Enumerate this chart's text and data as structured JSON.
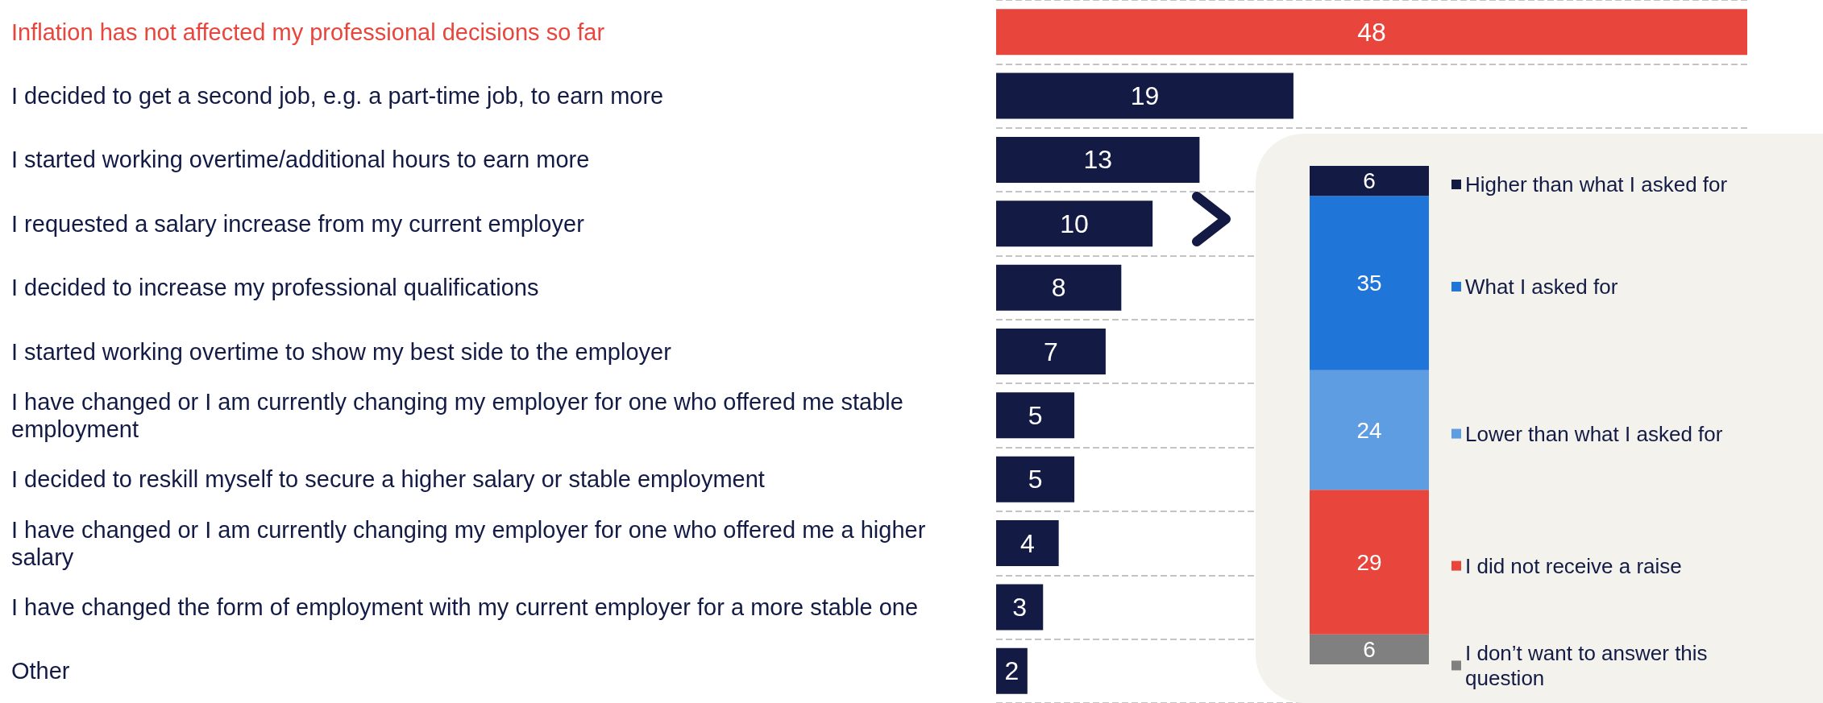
{
  "chart_data": [
    {
      "type": "bar",
      "orientation": "horizontal",
      "categories": [
        "Inflation has not affected my professional decisions so far",
        "I decided to get a second job, e.g. a part-time job, to earn more",
        "I started working overtime/additional hours to earn more",
        "I requested a salary increase from my current employer",
        "I decided to increase my professional qualifications",
        "I started working overtime to show my best side to the employer",
        "I have changed or I am currently changing my employer for one who offered me stable employment",
        "I decided to reskill myself to secure a higher salary or stable employment",
        "I have changed or I am currently changing my employer for one who offered me a higher salary",
        "I have changed the form of employment with my current employer for a more stable one",
        "Other"
      ],
      "values": [
        48,
        19,
        13,
        10,
        8,
        7,
        5,
        5,
        4,
        3,
        2
      ],
      "colors": [
        "#e8453c",
        "#131b45",
        "#131b45",
        "#131b45",
        "#131b45",
        "#131b45",
        "#131b45",
        "#131b45",
        "#131b45",
        "#131b45",
        "#131b45"
      ],
      "data_labels": true,
      "grid": "y"
    },
    {
      "type": "bar",
      "stacked": true,
      "categories": [
        null
      ],
      "data_labels": true,
      "legend": "right",
      "series": [
        {
          "name": "I don’t want to answer this question",
          "color": "#808080",
          "values": [
            6
          ]
        },
        {
          "name": "I did not receive a raise",
          "color": "#e8453c",
          "values": [
            29
          ]
        },
        {
          "name": "Lower than what I asked for",
          "color": "#5f9de2",
          "values": [
            24
          ]
        },
        {
          "name": "What I asked for",
          "color": "#2075d8",
          "values": [
            35
          ]
        },
        {
          "name": "Higher than what I asked for",
          "color": "#131b45",
          "values": [
            6
          ]
        }
      ]
    }
  ]
}
